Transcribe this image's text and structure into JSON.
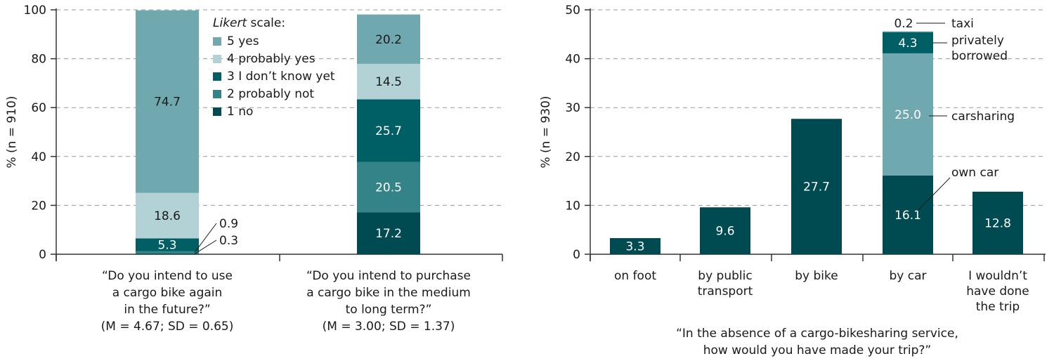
{
  "chart_data": [
    {
      "type": "bar",
      "stacked": true,
      "ylabel": "% (n = 910)",
      "ylim": [
        0,
        100
      ],
      "yticks": [
        0,
        20,
        40,
        60,
        80,
        100
      ],
      "grid": true,
      "legend_title_italic": "Likert",
      "legend_title_rest": " scale:",
      "legend_placement": "top-center",
      "colors": {
        "5 yes": "#6fa8ae",
        "4 probably yes": "#b2d2d5",
        "3 I don’t know yet": "#005f64",
        "2 probably not": "#338388",
        "1 no": "#004b52"
      },
      "legend": [
        "5 yes",
        "4 probably yes",
        "3 I don’t know yet",
        "2 probably not",
        "1 no"
      ],
      "categories": [
        {
          "lines": [
            "“Do you intend to use",
            "a cargo bike again",
            "in the future?”",
            "(M = 4.67; SD = 0.65)"
          ]
        },
        {
          "lines": [
            "“Do you intend to purchase",
            "a cargo bike in the medium",
            "to long term?”",
            "(M = 3.00; SD = 1.37)"
          ]
        }
      ],
      "series": [
        {
          "name": "1 no",
          "values": [
            0.3,
            17.2
          ],
          "labels": [
            "0.3",
            "17.2"
          ]
        },
        {
          "name": "2 probably not",
          "values": [
            0.9,
            20.5
          ],
          "labels": [
            "0.9",
            "20.5"
          ]
        },
        {
          "name": "3 I don’t know yet",
          "values": [
            5.3,
            25.7
          ],
          "labels": [
            "5.3",
            "25.7"
          ]
        },
        {
          "name": "4 probably yes",
          "values": [
            18.6,
            14.5
          ],
          "labels": [
            "18.6",
            "14.5"
          ]
        },
        {
          "name": "5 yes",
          "values": [
            74.7,
            20.2
          ],
          "labels": [
            "74.7",
            "20.2"
          ]
        }
      ]
    },
    {
      "type": "bar",
      "stacked": true,
      "ylabel": "% (n = 930)",
      "ylim": [
        0,
        50
      ],
      "yticks": [
        0,
        10,
        20,
        30,
        40,
        50
      ],
      "grid": true,
      "title_lines": [
        "“In the absence of a cargo-bikesharing service,",
        "how would you have made your trip?”"
      ],
      "categories": [
        {
          "lines": [
            "on foot"
          ]
        },
        {
          "lines": [
            "by public",
            "transport"
          ]
        },
        {
          "lines": [
            "by bike"
          ]
        },
        {
          "lines": [
            "by car"
          ]
        },
        {
          "lines": [
            "I wouldn’t",
            "have done",
            "the trip"
          ]
        }
      ],
      "bars": [
        {
          "segments": [
            {
              "value": 3.3,
              "label": "3.3",
              "color": "#004b52"
            }
          ]
        },
        {
          "segments": [
            {
              "value": 9.6,
              "label": "9.6",
              "color": "#004b52"
            }
          ]
        },
        {
          "segments": [
            {
              "value": 27.7,
              "label": "27.7",
              "color": "#004b52"
            }
          ]
        },
        {
          "segments": [
            {
              "value": 16.1,
              "label": "16.1",
              "color": "#004b52",
              "annotation": [
                "own car"
              ]
            },
            {
              "value": 25.0,
              "label": "25.0",
              "color": "#6fa8ae",
              "annotation": [
                "carsharing"
              ]
            },
            {
              "value": 4.3,
              "label": "4.3",
              "color": "#005f64",
              "annotation": [
                "privately",
                "borrowed"
              ]
            },
            {
              "value": 0.2,
              "label": "0.2",
              "color": "#6fa8ae",
              "annotation": [
                "taxi"
              ]
            }
          ]
        },
        {
          "segments": [
            {
              "value": 12.8,
              "label": "12.8",
              "color": "#004b52"
            }
          ]
        }
      ]
    }
  ]
}
